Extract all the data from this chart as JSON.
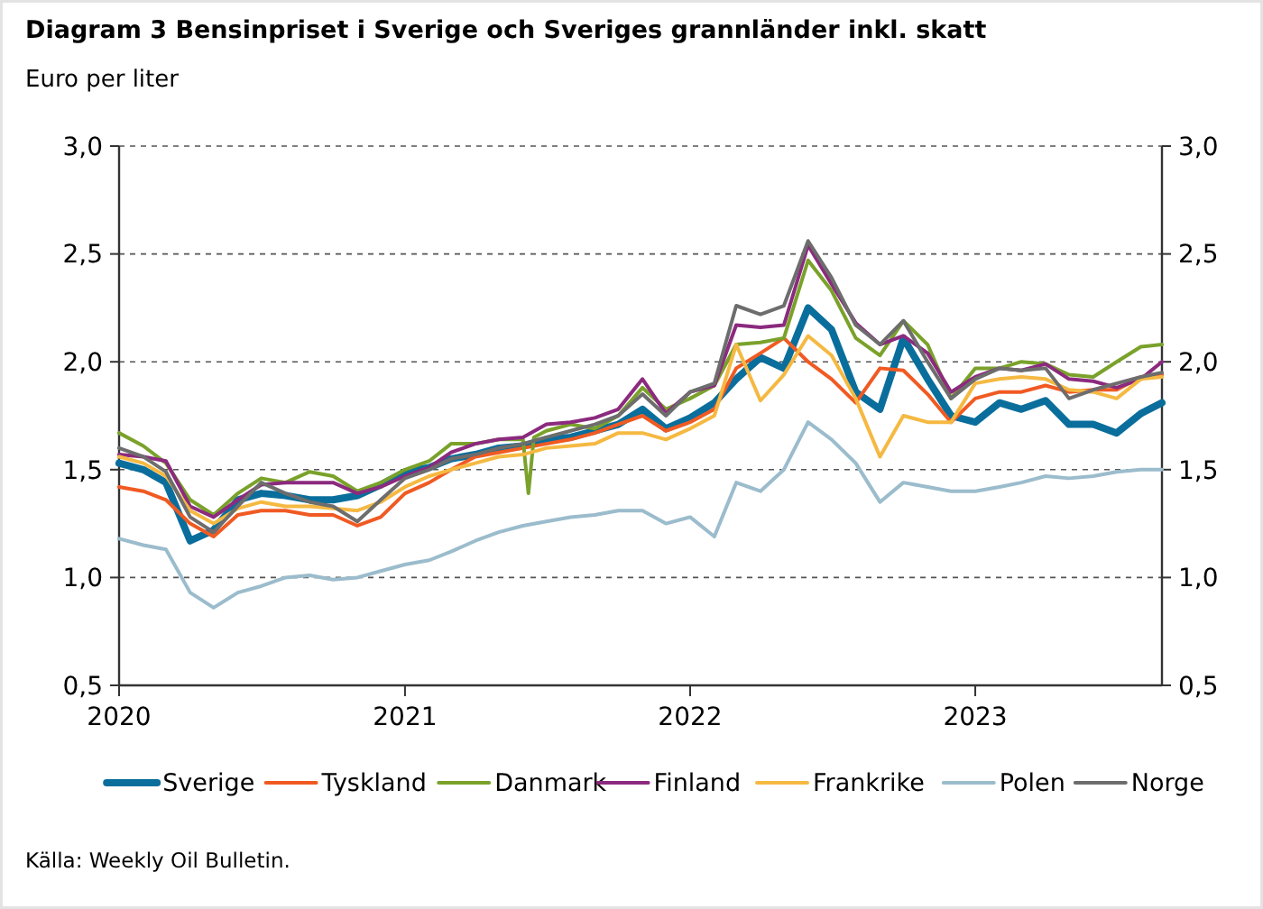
{
  "chart_data": {
    "type": "line",
    "title": "Diagram 3 Bensinpriset i Sverige och Sveriges grannländer inkl. skatt",
    "subtitle": "Euro per liter",
    "annotations": [
      "Källa: Weekly Oil Bulletin."
    ],
    "x": [
      "2020-01-01",
      "2020-02-01",
      "2020-03-01",
      "2020-04-01",
      "2020-05-01",
      "2020-06-01",
      "2020-07-01",
      "2020-08-01",
      "2020-09-01",
      "2020-10-01",
      "2020-11-01",
      "2020-12-01",
      "2021-01-01",
      "2021-02-01",
      "2021-03-01",
      "2021-04-01",
      "2021-05-01",
      "2021-06-01",
      "2021-07-01",
      "2021-08-01",
      "2021-09-01",
      "2021-10-01",
      "2021-11-01",
      "2021-12-01",
      "2022-01-01",
      "2022-02-01",
      "2022-03-01",
      "2022-04-01",
      "2022-05-01",
      "2022-06-01",
      "2022-07-01",
      "2022-08-01",
      "2022-09-01",
      "2022-10-01",
      "2022-11-01",
      "2022-12-01",
      "2023-01-01",
      "2023-02-01",
      "2023-03-01",
      "2023-04-01",
      "2023-05-01",
      "2023-06-01",
      "2023-07-01",
      "2023-08-01",
      "2023-08-28"
    ],
    "xlim": [
      "2020-01-01",
      "2023-08-28"
    ],
    "xticks": [
      "2020",
      "2021",
      "2022",
      "2023"
    ],
    "ylim": [
      0.5,
      3
    ],
    "yticks": [
      {
        "value": 0.5,
        "label": "0,5"
      },
      {
        "value": 1,
        "label": "1,0"
      },
      {
        "value": 1.5,
        "label": "1,5"
      },
      {
        "value": 2,
        "label": "2,0"
      },
      {
        "value": 2.5,
        "label": "2,5"
      },
      {
        "value": 3,
        "label": "3,0"
      }
    ],
    "y2lim": [
      0.5,
      3
    ],
    "y2ticks": [
      {
        "value": 0.5,
        "label": "0,5"
      },
      {
        "value": 1,
        "label": "1,0"
      },
      {
        "value": 1.5,
        "label": "1,5"
      },
      {
        "value": 2,
        "label": "2,0"
      },
      {
        "value": 2.5,
        "label": "2,5"
      },
      {
        "value": 3,
        "label": "3,0"
      }
    ],
    "grid": "y",
    "legend": "bottom",
    "line_style": "solid",
    "marker": "none",
    "series": [
      {
        "name": "Sverige",
        "color": "#0a6e9c",
        "values": [
          1.53,
          1.5,
          1.44,
          1.17,
          1.22,
          1.36,
          1.39,
          1.38,
          1.36,
          1.36,
          1.38,
          1.43,
          1.49,
          1.51,
          1.55,
          1.57,
          1.6,
          1.61,
          1.64,
          1.65,
          1.68,
          1.71,
          1.78,
          1.69,
          1.74,
          1.81,
          1.92,
          2.02,
          1.97,
          2.25,
          2.15,
          1.86,
          1.78,
          2.11,
          1.92,
          1.75,
          1.72,
          1.81,
          1.78,
          1.82,
          1.71,
          1.71,
          1.67,
          1.76,
          1.81
        ]
      },
      {
        "name": "Tyskland",
        "color": "#f05a22",
        "values": [
          1.42,
          1.4,
          1.36,
          1.25,
          1.19,
          1.29,
          1.31,
          1.31,
          1.29,
          1.29,
          1.24,
          1.28,
          1.39,
          1.44,
          1.5,
          1.56,
          1.58,
          1.6,
          1.62,
          1.64,
          1.67,
          1.71,
          1.75,
          1.68,
          1.72,
          1.78,
          1.97,
          2.04,
          2.11,
          2.0,
          1.92,
          1.81,
          1.97,
          1.96,
          1.85,
          1.72,
          1.83,
          1.86,
          1.86,
          1.89,
          1.86,
          1.87,
          1.87,
          1.93,
          1.94
        ]
      },
      {
        "name": "Danmark",
        "color": "#7aa22a",
        "x": [
          "2020-01-01",
          "2020-02-01",
          "2020-03-01",
          "2020-04-01",
          "2020-05-01",
          "2020-06-01",
          "2020-07-01",
          "2020-08-01",
          "2020-09-01",
          "2020-10-01",
          "2020-11-01",
          "2020-12-01",
          "2021-01-01",
          "2021-02-01",
          "2021-03-01",
          "2021-04-01",
          "2021-05-01",
          "2021-06-01",
          "2021-06-08",
          "2021-06-15",
          "2021-07-01",
          "2021-08-01",
          "2021-09-01",
          "2021-10-01",
          "2021-11-01",
          "2021-12-01",
          "2022-01-01",
          "2022-02-01",
          "2022-03-01",
          "2022-04-01",
          "2022-05-01",
          "2022-06-01",
          "2022-07-01",
          "2022-08-01",
          "2022-09-01",
          "2022-10-01",
          "2022-11-01",
          "2022-12-01",
          "2023-01-01",
          "2023-02-01",
          "2023-03-01",
          "2023-04-01",
          "2023-05-01",
          "2023-06-01",
          "2023-07-01",
          "2023-08-01",
          "2023-08-28"
        ],
        "values": [
          1.67,
          1.61,
          1.53,
          1.36,
          1.29,
          1.39,
          1.46,
          1.44,
          1.49,
          1.47,
          1.4,
          1.44,
          1.5,
          1.54,
          1.62,
          1.62,
          1.64,
          1.64,
          1.39,
          1.65,
          1.68,
          1.71,
          1.69,
          1.75,
          1.88,
          1.78,
          1.83,
          1.89,
          2.08,
          2.09,
          2.11,
          2.47,
          2.33,
          2.11,
          2.03,
          2.19,
          2.08,
          1.83,
          1.97,
          1.97,
          2.0,
          1.99,
          1.94,
          1.93,
          2.0,
          2.07,
          2.08
        ]
      },
      {
        "name": "Finland",
        "color": "#8b2a7e",
        "values": [
          1.57,
          1.56,
          1.54,
          1.33,
          1.28,
          1.36,
          1.43,
          1.44,
          1.44,
          1.44,
          1.39,
          1.42,
          1.47,
          1.51,
          1.58,
          1.62,
          1.64,
          1.65,
          1.71,
          1.72,
          1.74,
          1.78,
          1.92,
          1.76,
          1.86,
          1.89,
          2.17,
          2.16,
          2.17,
          2.54,
          2.36,
          2.18,
          2.08,
          2.12,
          2.04,
          1.86,
          1.93,
          1.97,
          1.96,
          1.99,
          1.92,
          1.91,
          1.88,
          1.92,
          2.0
        ]
      },
      {
        "name": "Frankrike",
        "color": "#f5b942",
        "values": [
          1.56,
          1.53,
          1.47,
          1.31,
          1.25,
          1.32,
          1.35,
          1.33,
          1.33,
          1.32,
          1.31,
          1.35,
          1.42,
          1.47,
          1.5,
          1.53,
          1.56,
          1.57,
          1.6,
          1.61,
          1.62,
          1.67,
          1.67,
          1.64,
          1.69,
          1.75,
          2.08,
          1.82,
          1.94,
          2.12,
          2.03,
          1.83,
          1.56,
          1.75,
          1.72,
          1.72,
          1.9,
          1.92,
          1.93,
          1.92,
          1.87,
          1.86,
          1.83,
          1.92,
          1.93
        ]
      },
      {
        "name": "Polen",
        "color": "#9bbccc",
        "values": [
          1.18,
          1.15,
          1.13,
          0.93,
          0.86,
          0.93,
          0.96,
          1.0,
          1.01,
          0.99,
          1.0,
          1.03,
          1.06,
          1.08,
          1.12,
          1.17,
          1.21,
          1.24,
          1.26,
          1.28,
          1.29,
          1.31,
          1.31,
          1.25,
          1.28,
          1.19,
          1.44,
          1.4,
          1.5,
          1.72,
          1.64,
          1.53,
          1.35,
          1.44,
          1.42,
          1.4,
          1.4,
          1.42,
          1.44,
          1.47,
          1.46,
          1.47,
          1.49,
          1.5,
          1.5
        ]
      },
      {
        "name": "Norge",
        "color": "#6d6d6d",
        "values": [
          1.6,
          1.56,
          1.49,
          1.28,
          1.21,
          1.33,
          1.44,
          1.39,
          1.35,
          1.33,
          1.26,
          1.36,
          1.46,
          1.5,
          1.55,
          1.57,
          1.6,
          1.62,
          1.65,
          1.68,
          1.71,
          1.75,
          1.85,
          1.75,
          1.86,
          1.9,
          2.26,
          2.22,
          2.26,
          2.56,
          2.39,
          2.17,
          2.08,
          2.19,
          2.0,
          1.83,
          1.92,
          1.97,
          1.96,
          1.97,
          1.83,
          1.87,
          1.9,
          1.93,
          1.95
        ]
      }
    ]
  }
}
